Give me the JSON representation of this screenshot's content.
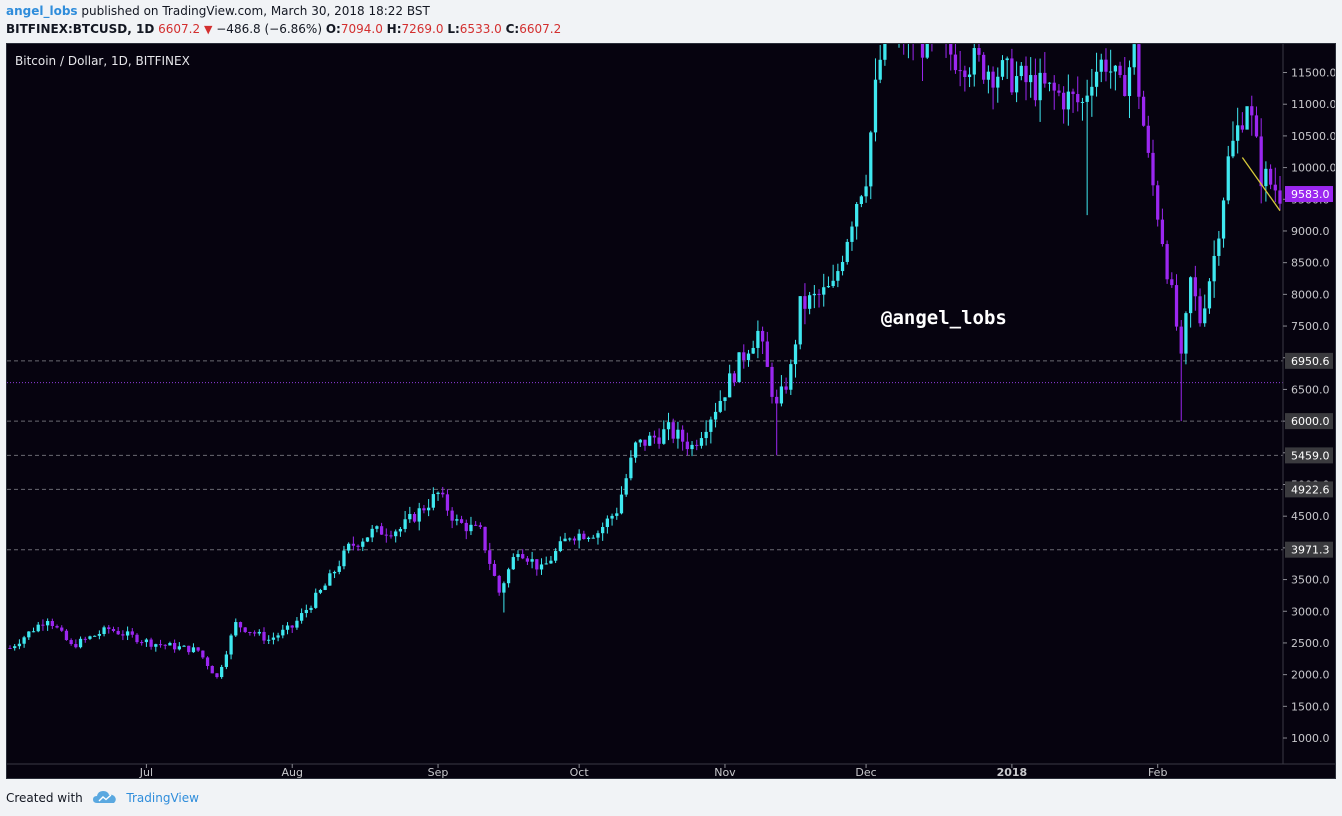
{
  "header": {
    "author": "angel_lobs",
    "published_text": "published on TradingView.com, March 30, 2018 18:22 BST",
    "symbol": "BITFINEX:BTCUSD, 1D",
    "last": "6607.2",
    "change": "−486.8 (−6.86%)",
    "open_label": "O:",
    "open": "7094.0",
    "high_label": "H:",
    "high": "7269.0",
    "low_label": "L:",
    "low": "6533.0",
    "close_label": "C:",
    "close": "6607.2"
  },
  "footer": {
    "created_with": "Created with",
    "brand": "TradingView"
  },
  "colors": {
    "background": "#06030f",
    "up": "#3fe8f0",
    "down": "#9b27f0",
    "hline": "#6a6a72",
    "current_line": "#8e3bdc",
    "trendline": "#d6c83a",
    "axis_label_bg": "#3a3a3e",
    "price_tag_bg": "#9b27f0"
  },
  "chart_data": {
    "type": "candlestick",
    "title": "Bitcoin / Dollar, 1D, BITFINEX",
    "watermark": "@angel_lobs",
    "y_ticks": [
      1000,
      1500,
      2000,
      2500,
      3000,
      3500,
      4000,
      4500,
      5000,
      5500,
      6000,
      6500,
      7000,
      7500,
      8000,
      8500,
      9000,
      9500,
      10000,
      10500,
      11000,
      11500
    ],
    "y_tick_labels": [
      "1000.0",
      "1500.0",
      "2000.0",
      "2500.0",
      "3000.0",
      "3500.0",
      "4000.0",
      "4500.0",
      "5000.0",
      "5500.0",
      "6000.0",
      "6500.0",
      "7000.0",
      "7500.0",
      "8000.0",
      "8500.0",
      "9000.0",
      "9500.0",
      "10000.0",
      "10500.0",
      "11000.0",
      "11500.0"
    ],
    "x_labels": [
      {
        "label": "Jul",
        "date": "2017-07-01"
      },
      {
        "label": "Aug",
        "date": "2017-08-01"
      },
      {
        "label": "Sep",
        "date": "2017-09-01"
      },
      {
        "label": "Oct",
        "date": "2017-10-01"
      },
      {
        "label": "Nov",
        "date": "2017-11-01"
      },
      {
        "label": "Dec",
        "date": "2017-12-01"
      },
      {
        "label": "2018",
        "date": "2018-01-01"
      },
      {
        "label": "Feb",
        "date": "2018-02-01"
      }
    ],
    "x_range": [
      "2017-06-02",
      "2018-02-27"
    ],
    "y_range": [
      590,
      11950
    ],
    "horizontal_lines": [
      {
        "value": 6950.6,
        "label": "6950.6"
      },
      {
        "value": 6000.0,
        "label": "6000.0"
      },
      {
        "value": 5459.0,
        "label": "5459.0"
      },
      {
        "value": 4922.6,
        "label": "4922.6"
      },
      {
        "value": 3971.3,
        "label": "3971.3"
      }
    ],
    "current_price": {
      "value": 6607.2
    },
    "price_tag": {
      "value": 9583.0,
      "label": "9583.0"
    },
    "trendline": [
      {
        "date": "2018-02-19",
        "price": 10160
      },
      {
        "date": "2018-02-27",
        "price": 9320
      }
    ],
    "anchors": [
      {
        "date": "2017-06-02",
        "price": 2420
      },
      {
        "date": "2017-06-10",
        "price": 2900
      },
      {
        "date": "2017-06-15",
        "price": 2450
      },
      {
        "date": "2017-06-23",
        "price": 2720
      },
      {
        "date": "2017-07-02",
        "price": 2500
      },
      {
        "date": "2017-07-12",
        "price": 2380
      },
      {
        "date": "2017-07-16",
        "price": 1950
      },
      {
        "date": "2017-07-20",
        "price": 2800
      },
      {
        "date": "2017-07-27",
        "price": 2550
      },
      {
        "date": "2017-08-01",
        "price": 2750
      },
      {
        "date": "2017-08-08",
        "price": 3400
      },
      {
        "date": "2017-08-13",
        "price": 4000
      },
      {
        "date": "2017-08-18",
        "price": 4250
      },
      {
        "date": "2017-08-24",
        "price": 4300
      },
      {
        "date": "2017-09-01",
        "price": 4850
      },
      {
        "date": "2017-09-05",
        "price": 4400
      },
      {
        "date": "2017-09-10",
        "price": 4250
      },
      {
        "date": "2017-09-14",
        "price": 3300
      },
      {
        "date": "2017-09-18",
        "price": 4000
      },
      {
        "date": "2017-09-23",
        "price": 3650
      },
      {
        "date": "2017-09-29",
        "price": 4200
      },
      {
        "date": "2017-10-05",
        "price": 4250
      },
      {
        "date": "2017-10-09",
        "price": 4600
      },
      {
        "date": "2017-10-13",
        "price": 5600
      },
      {
        "date": "2017-10-20",
        "price": 5850
      },
      {
        "date": "2017-10-25",
        "price": 5600
      },
      {
        "date": "2017-10-31",
        "price": 6350
      },
      {
        "date": "2017-11-06",
        "price": 7200
      },
      {
        "date": "2017-11-08",
        "price": 7400
      },
      {
        "date": "2017-11-12",
        "price": 6200
      },
      {
        "date": "2017-11-15",
        "price": 6800
      },
      {
        "date": "2017-11-17",
        "price": 7800
      },
      {
        "date": "2017-11-24",
        "price": 8100
      },
      {
        "date": "2017-11-29",
        "price": 9500
      },
      {
        "date": "2017-12-01",
        "price": 9900
      },
      {
        "date": "2017-12-03",
        "price": 11200
      },
      {
        "date": "2017-12-05",
        "price": 12200
      },
      {
        "date": "2018-01-16",
        "price": 11000
      },
      {
        "date": "2018-01-18",
        "price": 11500
      },
      {
        "date": "2018-01-21",
        "price": 11700
      },
      {
        "date": "2018-01-24",
        "price": 11200
      },
      {
        "date": "2018-01-27",
        "price": 11800
      },
      {
        "date": "2018-01-30",
        "price": 10100
      },
      {
        "date": "2018-02-02",
        "price": 8900
      },
      {
        "date": "2018-02-05",
        "price": 7500
      },
      {
        "date": "2018-02-06",
        "price": 6900
      },
      {
        "date": "2018-02-08",
        "price": 8200
      },
      {
        "date": "2018-02-10",
        "price": 7600
      },
      {
        "date": "2018-02-13",
        "price": 8600
      },
      {
        "date": "2018-02-16",
        "price": 10100
      },
      {
        "date": "2018-02-20",
        "price": 11100
      },
      {
        "date": "2018-02-23",
        "price": 9900
      },
      {
        "date": "2018-02-27",
        "price": 9600
      }
    ]
  }
}
